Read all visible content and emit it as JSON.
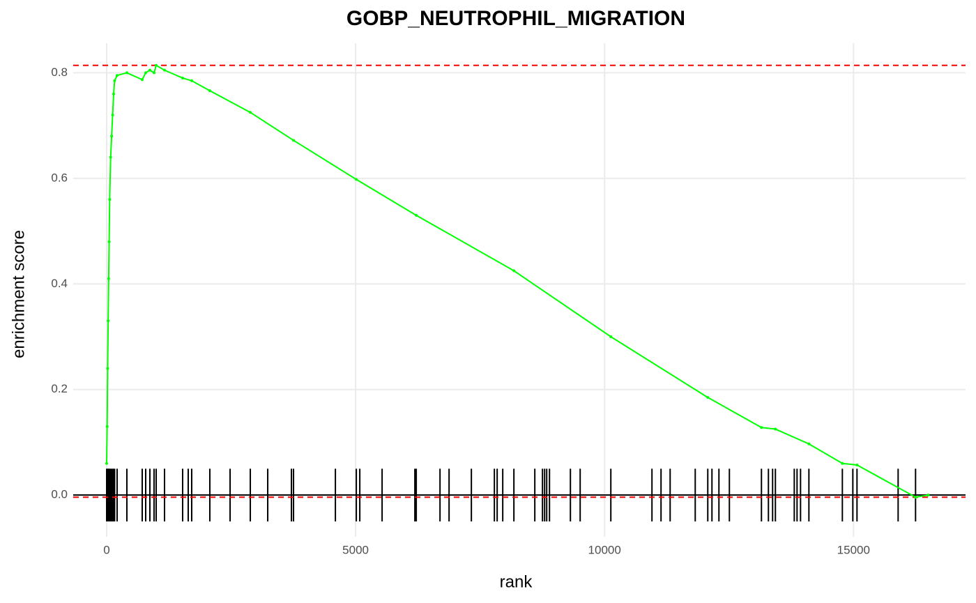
{
  "chart_data": {
    "type": "line",
    "title": "GOBP_NEUTROPHIL_MIGRATION",
    "x_label": "rank",
    "y_label": "enrichment score",
    "xlim": [
      -672,
      17250
    ],
    "ylim": [
      -0.079,
      0.856
    ],
    "xticks": [
      0,
      5000,
      10000,
      15000
    ],
    "yticks": [
      {
        "value": 0,
        "label": "0.0"
      },
      0.2,
      0.4,
      0.6,
      0.8
    ],
    "grid": true,
    "series": [
      {
        "color": "#00ff00",
        "x": [
          0,
          10,
          20,
          30,
          40,
          50,
          60,
          80,
          100,
          120,
          140,
          160,
          210,
          406,
          714,
          784,
          868,
          952,
          994,
          1162,
          1526,
          1708,
          2072,
          2885,
          3753,
          5014,
          6218,
          8179,
          10126,
          12073,
          13151,
          13431,
          14104,
          14776,
          15070,
          16246,
          16500
        ],
        "values": [
          0.06,
          0.13,
          0.24,
          0.33,
          0.41,
          0.48,
          0.56,
          0.64,
          0.68,
          0.72,
          0.76,
          0.785,
          0.795,
          0.8,
          0.787,
          0.8,
          0.805,
          0.8,
          0.814,
          0.805,
          0.79,
          0.785,
          0.766,
          0.725,
          0.672,
          0.598,
          0.53,
          0.425,
          0.3,
          0.185,
          0.128,
          0.125,
          0.097,
          0.06,
          0.057,
          -0.004,
          0.0
        ]
      }
    ],
    "hits": [
      0,
      10,
      20,
      30,
      40,
      50,
      60,
      80,
      100,
      120,
      140,
      160,
      210,
      406,
      714,
      784,
      868,
      952,
      994,
      1162,
      1526,
      1638,
      1708,
      2072,
      2479,
      2885,
      3235,
      3711,
      3753,
      4594,
      5014,
      5084,
      5532,
      6190,
      6218,
      6695,
      6877,
      7325,
      7787,
      7843,
      7955,
      8179,
      8599,
      8753,
      8796,
      8838,
      8894,
      9314,
      9510,
      10126,
      10952,
      11134,
      11317,
      11821,
      12073,
      12157,
      12297,
      12507,
      13151,
      13291,
      13375,
      13431,
      13810,
      13866,
      13936,
      14104,
      14776,
      14986,
      15070,
      15896,
      16246
    ],
    "hit_half_height": 0.05,
    "hit_color": "#000000",
    "baseline": 0,
    "baseline_color": "#000000",
    "reference_lines": [
      0.814,
      -0.004
    ],
    "reference_color": "#ff0000"
  }
}
